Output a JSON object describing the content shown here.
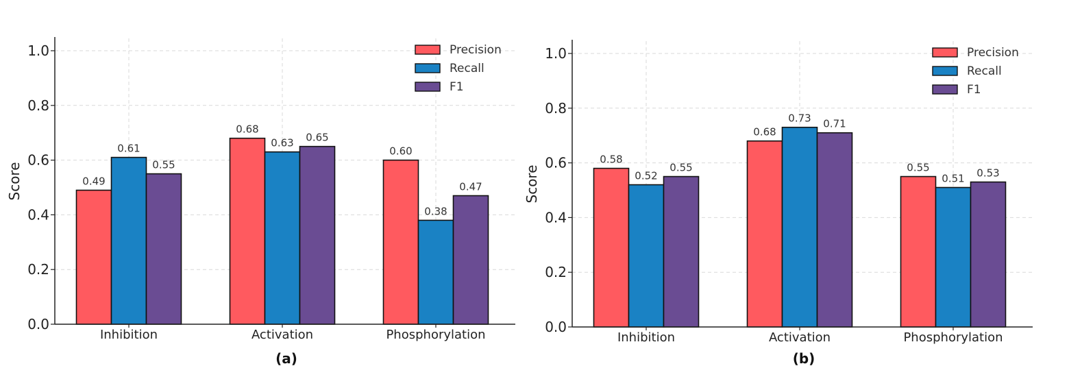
{
  "chart_data": [
    {
      "type": "bar",
      "caption": "(a)",
      "ylabel": "Score",
      "xlabel": "",
      "ylim": [
        0,
        1.05
      ],
      "yticks": [
        "0.0",
        "0.2",
        "0.4",
        "0.6",
        "0.8",
        "1.0"
      ],
      "categories": [
        "Inhibition",
        "Activation",
        "Phosphorylation"
      ],
      "series": [
        {
          "name": "Precision",
          "values": [
            0.49,
            0.68,
            0.6
          ],
          "labels": [
            "0.49",
            "0.68",
            "0.60"
          ]
        },
        {
          "name": "Recall",
          "values": [
            0.61,
            0.63,
            0.38
          ],
          "labels": [
            "0.61",
            "0.63",
            "0.38"
          ]
        },
        {
          "name": "F1",
          "values": [
            0.55,
            0.65,
            0.47
          ],
          "labels": [
            "0.55",
            "0.65",
            "0.47"
          ]
        }
      ],
      "legend_position": "top-right",
      "grid": true
    },
    {
      "type": "bar",
      "caption": "(b)",
      "ylabel": "Score",
      "xlabel": "",
      "ylim": [
        0,
        1.05
      ],
      "yticks": [
        "0.0",
        "0.2",
        "0.4",
        "0.6",
        "0.8",
        "1.0"
      ],
      "categories": [
        "Inhibition",
        "Activation",
        "Phosphorylation"
      ],
      "series": [
        {
          "name": "Precision",
          "values": [
            0.58,
            0.68,
            0.55
          ],
          "labels": [
            "0.58",
            "0.68",
            "0.55"
          ]
        },
        {
          "name": "Recall",
          "values": [
            0.52,
            0.73,
            0.51
          ],
          "labels": [
            "0.52",
            "0.73",
            "0.51"
          ]
        },
        {
          "name": "F1",
          "values": [
            0.55,
            0.71,
            0.53
          ],
          "labels": [
            "0.55",
            "0.71",
            "0.53"
          ]
        }
      ],
      "legend_position": "top-right",
      "grid": true
    }
  ],
  "colors": {
    "Precision": "#ff5a5f",
    "Recall": "#1a82c4",
    "F1": "#6a4c93",
    "edge": "#111111",
    "grid": "#d9d9d9",
    "axis": "#222222"
  }
}
